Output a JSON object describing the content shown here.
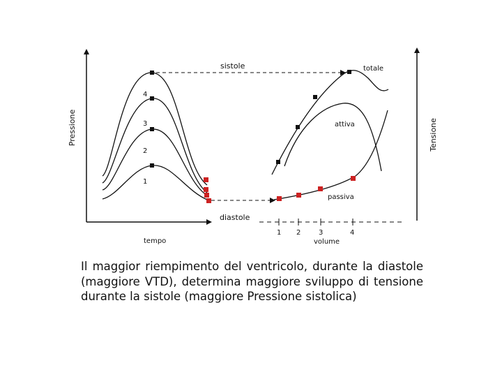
{
  "left_panel": {
    "y_axis_label": "Pressione",
    "x_axis_label": "tempo",
    "curve_labels": [
      "1",
      "2",
      "3",
      "4"
    ]
  },
  "right_panel": {
    "y_axis_label": "Tensione",
    "x_axis_label": "volume",
    "tick_labels": [
      "1",
      "2",
      "3",
      "4"
    ],
    "curve_labels": {
      "total": "totale",
      "active": "attiva",
      "passive": "passiva"
    }
  },
  "annotations": {
    "systole": "sistole",
    "diastole": "diastole"
  },
  "colors": {
    "systolic_marker": "#111111",
    "diastolic_marker": "#cc2222",
    "line": "#111111"
  },
  "caption": "Il maggior riempimento del ventricolo, durante la diastole (maggiore VTD), determina maggiore sviluppo di tensione durante la sistole (maggiore Pressione sistolica)"
}
